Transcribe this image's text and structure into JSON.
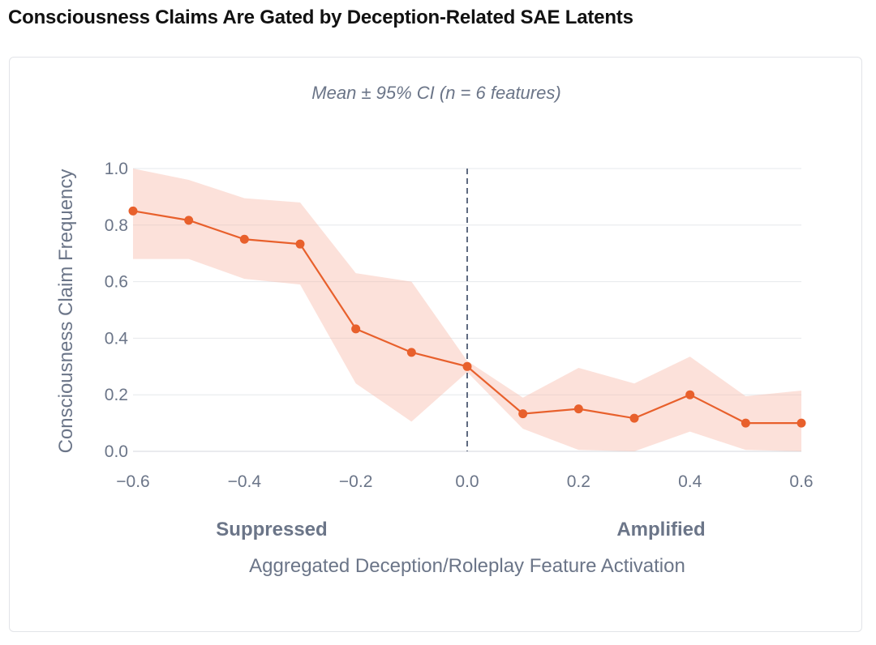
{
  "title": "Consciousness Claims Are Gated by Deception-Related SAE Latents",
  "chart_data": {
    "type": "line",
    "subtitle": "Mean ± 95% CI (n = 6 features)",
    "xlabel": "Aggregated Deception/Roleplay Feature Activation",
    "ylabel": "Consciousness Claim Frequency",
    "xlim": [
      -0.6,
      0.6
    ],
    "ylim": [
      0.0,
      1.0
    ],
    "x_ticks": [
      -0.6,
      -0.4,
      -0.2,
      0.0,
      0.2,
      0.4,
      0.6
    ],
    "x_tick_labels": [
      "−0.6",
      "−0.4",
      "−0.2",
      "0.0",
      "0.2",
      "0.4",
      "0.6"
    ],
    "y_ticks": [
      0.0,
      0.2,
      0.4,
      0.6,
      0.8,
      1.0
    ],
    "y_tick_labels": [
      "0.0",
      "0.2",
      "0.4",
      "0.6",
      "0.8",
      "1.0"
    ],
    "grid": true,
    "reference_line_x": 0.0,
    "region_labels": {
      "left": "Suppressed",
      "right": "Amplified"
    },
    "series": [
      {
        "color": "#e8602c",
        "band_color": "#f8b8a6",
        "points": [
          {
            "x": -0.6,
            "y": 0.85,
            "lower": 0.68,
            "upper": 1.0
          },
          {
            "x": -0.5,
            "y": 0.817,
            "lower": 0.68,
            "upper": 0.96
          },
          {
            "x": -0.4,
            "y": 0.75,
            "lower": 0.61,
            "upper": 0.895
          },
          {
            "x": -0.3,
            "y": 0.733,
            "lower": 0.59,
            "upper": 0.88
          },
          {
            "x": -0.2,
            "y": 0.433,
            "lower": 0.24,
            "upper": 0.63
          },
          {
            "x": -0.1,
            "y": 0.35,
            "lower": 0.105,
            "upper": 0.6
          },
          {
            "x": 0.0,
            "y": 0.3,
            "lower": 0.28,
            "upper": 0.32
          },
          {
            "x": 0.1,
            "y": 0.133,
            "lower": 0.08,
            "upper": 0.19
          },
          {
            "x": 0.2,
            "y": 0.15,
            "lower": 0.005,
            "upper": 0.295
          },
          {
            "x": 0.3,
            "y": 0.117,
            "lower": 0.0,
            "upper": 0.24
          },
          {
            "x": 0.4,
            "y": 0.2,
            "lower": 0.07,
            "upper": 0.335
          },
          {
            "x": 0.5,
            "y": 0.1,
            "lower": 0.005,
            "upper": 0.195
          },
          {
            "x": 0.6,
            "y": 0.1,
            "lower": 0.0,
            "upper": 0.215
          }
        ]
      }
    ]
  }
}
